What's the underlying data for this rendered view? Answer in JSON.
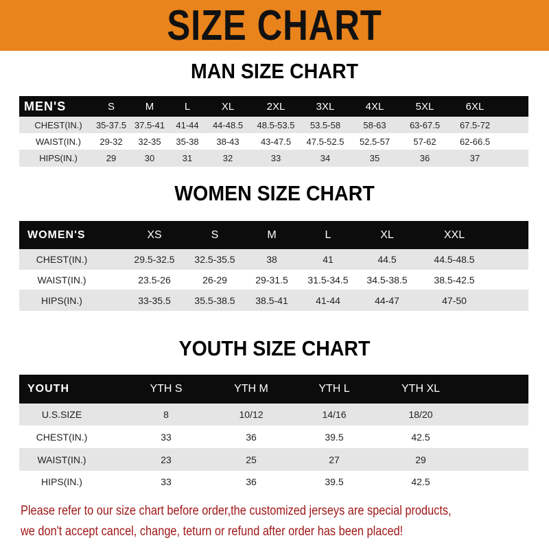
{
  "banner": {
    "title": "SIZE CHART",
    "color": "#e9831c"
  },
  "men": {
    "title": "MAN SIZE CHART",
    "header": [
      "MEN'S",
      "S",
      "M",
      "L",
      "XL",
      "2XL",
      "3XL",
      "4XL",
      "5XL",
      "6XL"
    ],
    "rows": [
      [
        "CHEST(IN.)",
        "35-37.5",
        "37.5-41",
        "41-44",
        "44-48.5",
        "48.5-53.5",
        "53.5-58",
        "58-63",
        "63-67.5",
        "67.5-72"
      ],
      [
        "WAIST(IN.)",
        "29-32",
        "32-35",
        "35-38",
        "38-43",
        "43-47.5",
        "47.5-52.5",
        "52.5-57",
        "57-62",
        "62-66.5"
      ],
      [
        "HIPS(IN.)",
        "29",
        "30",
        "31",
        "32",
        "33",
        "34",
        "35",
        "36",
        "37"
      ]
    ]
  },
  "women": {
    "title": "WOMEN SIZE CHART",
    "header": [
      "WOMEN'S",
      "XS",
      "S",
      "M",
      "L",
      "XL",
      "XXL"
    ],
    "rows": [
      [
        "CHEST(IN.)",
        "29.5-32.5",
        "32.5-35.5",
        "38",
        "41",
        "44.5",
        "44.5-48.5"
      ],
      [
        "WAIST(IN.)",
        "23.5-26",
        "26-29",
        "29-31.5",
        "31.5-34.5",
        "34.5-38.5",
        "38.5-42.5"
      ],
      [
        "HIPS(IN.)",
        "33-35.5",
        "35.5-38.5",
        "38.5-41",
        "41-44",
        "44-47",
        "47-50"
      ]
    ]
  },
  "youth": {
    "title": "YOUTH SIZE CHART",
    "header": [
      "YOUTH",
      "YTH S",
      "YTH M",
      "YTH L",
      "YTH XL"
    ],
    "rows": [
      [
        "U.S.SIZE",
        "8",
        "10/12",
        "14/16",
        "18/20"
      ],
      [
        "CHEST(IN.)",
        "33",
        "36",
        "39.5",
        "42.5"
      ],
      [
        "WAIST(IN.)",
        "23",
        "25",
        "27",
        "29"
      ],
      [
        "HIPS(IN.)",
        "33",
        "36",
        "39.5",
        "42.5"
      ]
    ]
  },
  "note": {
    "line1": "Please refer to our size chart before order,the customized jerseys are special products,",
    "line2": "we don't accept cancel, change, teturn or refund after order has been placed!",
    "color": "#a01818"
  }
}
